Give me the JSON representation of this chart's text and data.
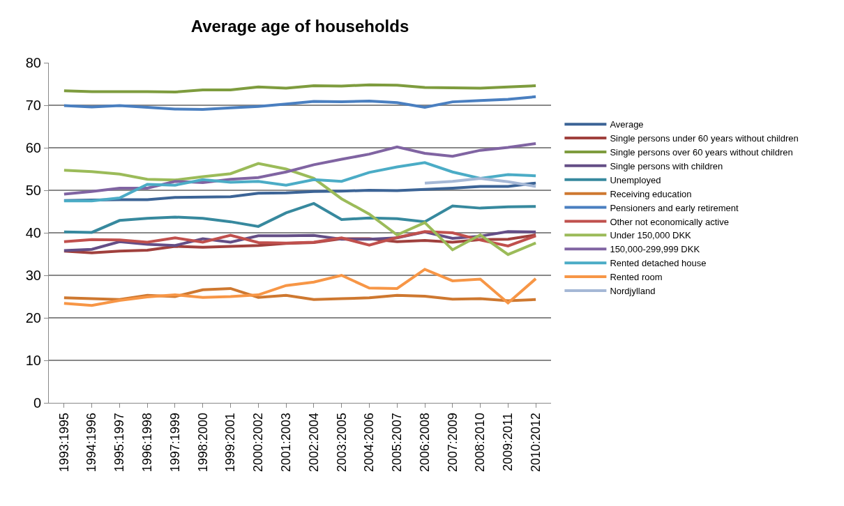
{
  "chart_data": {
    "type": "line",
    "title": "Average age of households",
    "categories": [
      "1993:1995",
      "1994:1996",
      "1995:1997",
      "1996:1998",
      "1997:1999",
      "1998:2000",
      "1999:2001",
      "2000:2002",
      "2001:2003",
      "2002:2004",
      "2003:2005",
      "2004:2006",
      "2005:2007",
      "2006:2008",
      "2007:2009",
      "2008:2010",
      "2009:2011",
      "2010:2012"
    ],
    "ylim": [
      0,
      80
    ],
    "yticks": [
      0,
      10,
      20,
      30,
      40,
      50,
      60,
      70,
      80
    ],
    "grid": "y",
    "legend": "right",
    "marker": "none",
    "line_style": "solid",
    "series": [
      {
        "name": "Average",
        "color": "#3c6496",
        "values": [
          47.6,
          47.7,
          47.8,
          47.8,
          48.3,
          48.4,
          48.5,
          49.3,
          49.4,
          49.7,
          49.8,
          50.0,
          49.9,
          50.2,
          50.5,
          50.9,
          50.9,
          51.7
        ]
      },
      {
        "name": "Single persons under 60 years without children",
        "color": "#a0403d",
        "values": [
          35.7,
          35.3,
          35.7,
          35.9,
          36.8,
          36.6,
          36.8,
          37.0,
          37.5,
          37.7,
          38.6,
          38.6,
          37.9,
          38.2,
          37.8,
          38.4,
          38.5,
          39.5
        ]
      },
      {
        "name": "Single persons over 60 years without children",
        "color": "#7e9c3e",
        "values": [
          73.4,
          73.2,
          73.2,
          73.2,
          73.1,
          73.6,
          73.6,
          74.3,
          74.0,
          74.6,
          74.5,
          74.8,
          74.7,
          74.2,
          74.1,
          74.0,
          74.3,
          74.6
        ]
      },
      {
        "name": "Single persons with children",
        "color": "#644e86",
        "values": [
          35.8,
          36.1,
          37.9,
          37.3,
          37.0,
          38.6,
          37.8,
          39.3,
          39.3,
          39.4,
          38.5,
          38.5,
          38.8,
          40.2,
          38.7,
          39.2,
          40.3,
          40.2
        ]
      },
      {
        "name": "Unemployed",
        "color": "#37899e",
        "values": [
          40.2,
          40.1,
          42.9,
          43.4,
          43.7,
          43.4,
          42.6,
          41.5,
          44.7,
          46.9,
          43.1,
          43.5,
          43.3,
          42.6,
          46.3,
          45.8,
          46.1,
          46.2
        ]
      },
      {
        "name": "Receiving education",
        "color": "#ce7830",
        "values": [
          24.7,
          24.5,
          24.3,
          25.3,
          25.0,
          26.6,
          26.9,
          24.8,
          25.3,
          24.3,
          24.5,
          24.7,
          25.3,
          25.1,
          24.4,
          24.5,
          24.0,
          24.3
        ]
      },
      {
        "name": "Pensioners and early retirement",
        "color": "#4a7fc0",
        "values": [
          69.9,
          69.6,
          69.9,
          69.5,
          69.1,
          69.0,
          69.4,
          69.7,
          70.3,
          70.9,
          70.8,
          71.0,
          70.6,
          69.5,
          70.8,
          71.1,
          71.4,
          72.0
        ]
      },
      {
        "name": "Other not economically active",
        "color": "#c0504d",
        "values": [
          37.9,
          38.4,
          38.3,
          37.8,
          38.8,
          37.8,
          39.4,
          37.7,
          37.6,
          37.8,
          38.8,
          37.1,
          38.9,
          40.3,
          40.0,
          38.3,
          36.9,
          39.3
        ]
      },
      {
        "name": "Under 150,000 DKK",
        "color": "#9bbb59",
        "values": [
          54.7,
          54.4,
          53.8,
          52.6,
          52.4,
          53.2,
          53.9,
          56.3,
          55.0,
          52.8,
          48.0,
          44.4,
          39.5,
          42.4,
          36.0,
          39.5,
          34.9,
          37.6
        ]
      },
      {
        "name": "150,000-299,999 DKK",
        "color": "#8064a2",
        "values": [
          49.1,
          49.7,
          50.5,
          50.5,
          52.1,
          51.8,
          52.6,
          53.0,
          54.3,
          56.0,
          57.3,
          58.5,
          60.2,
          58.7,
          58.0,
          59.4,
          60.1,
          61.0
        ]
      },
      {
        "name": "Rented detached house",
        "color": "#4bacc6",
        "values": [
          47.5,
          47.5,
          48.2,
          51.4,
          51.2,
          52.5,
          51.9,
          52.1,
          51.2,
          52.5,
          52.1,
          54.2,
          55.5,
          56.5,
          54.3,
          52.8,
          53.7,
          53.4
        ]
      },
      {
        "name": "Rented room",
        "color": "#f79646",
        "values": [
          23.4,
          22.9,
          24.1,
          24.9,
          25.4,
          24.8,
          25.0,
          25.4,
          27.6,
          28.4,
          30.0,
          27.0,
          26.9,
          31.4,
          28.7,
          29.1,
          23.5,
          29.2
        ]
      },
      {
        "name": "Nordjylland",
        "color": "#a5b8d6",
        "values": [
          null,
          null,
          null,
          null,
          null,
          null,
          null,
          null,
          null,
          null,
          null,
          null,
          null,
          51.7,
          52.1,
          52.8,
          52.0,
          50.9
        ]
      }
    ]
  }
}
